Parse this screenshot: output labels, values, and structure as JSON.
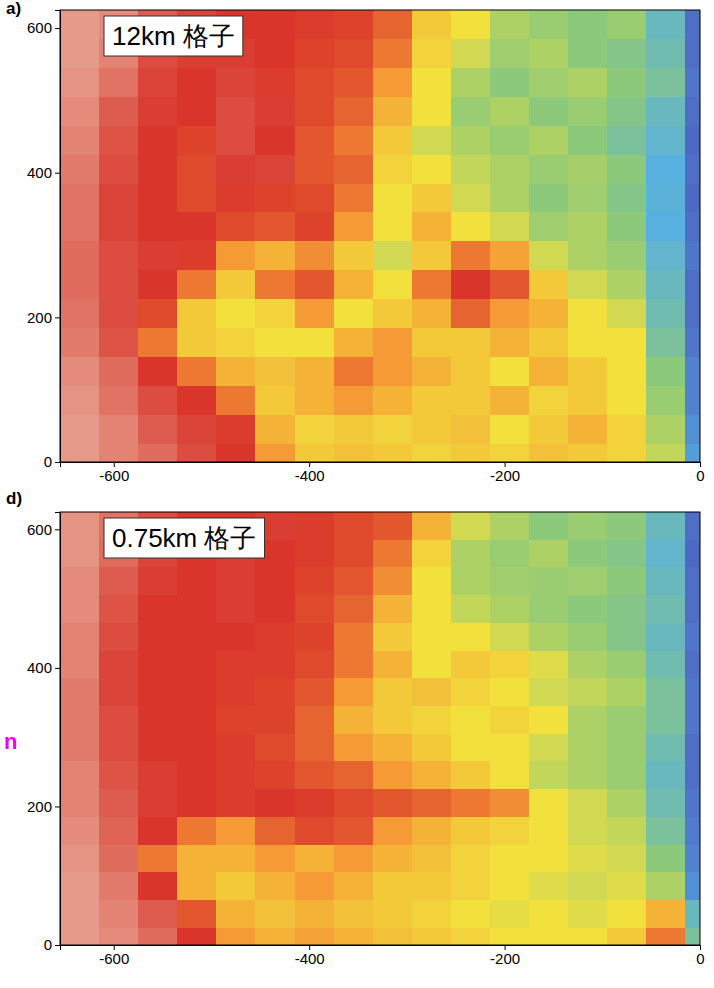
{
  "chart_data": [
    {
      "type": "heatmap",
      "title": "a)",
      "annotations": [
        {
          "text": "12km 格子"
        }
      ],
      "xlim": [
        -655,
        0
      ],
      "ylim": [
        0,
        625
      ],
      "xticks": [
        -600,
        -400,
        -200,
        0
      ],
      "yticks": [
        0,
        200,
        400,
        600
      ],
      "x_bins": [
        -655,
        -615,
        -575,
        -535,
        -495,
        -455,
        -415,
        -375,
        -335,
        -295,
        -255,
        -215,
        -175,
        -135,
        -95,
        -55,
        -15,
        0
      ],
      "y_bins": [
        625,
        585,
        545,
        505,
        465,
        425,
        385,
        345,
        305,
        265,
        225,
        185,
        145,
        105,
        65,
        25,
        0
      ],
      "color_values": [
        1,
        2.5,
        4,
        5.5,
        7,
        8.5,
        10
      ],
      "colors": [
        "#4a4fb8",
        "#58b0e0",
        "#8cc97a",
        "#f2e13c",
        "#f59a35",
        "#d9352a",
        "#e8aa98"
      ],
      "cells": [
        [
          9.8,
          9.6,
          9,
          8.7,
          8.5,
          8.5,
          8.4,
          8.3,
          7.8,
          6,
          5.5,
          4.5,
          4.2,
          4,
          4.2,
          3,
          1.5
        ],
        [
          9.8,
          9.5,
          8.8,
          8.6,
          8.6,
          8.5,
          8.3,
          8.2,
          7.5,
          5.8,
          5,
          4.3,
          4.5,
          4,
          3.8,
          3.2,
          1.5
        ],
        [
          9.7,
          9.3,
          8.7,
          8.5,
          8.7,
          8.4,
          8.2,
          8,
          7,
          5.5,
          4.5,
          4,
          4.3,
          4.5,
          4,
          3.5,
          1.6
        ],
        [
          9.6,
          9,
          8.6,
          8.5,
          8.8,
          8.6,
          8.2,
          7.8,
          6.5,
          5.5,
          4.2,
          4.5,
          4,
          4.2,
          3.8,
          3,
          1.5
        ],
        [
          9.5,
          8.9,
          8.5,
          8.3,
          8.8,
          8.5,
          8,
          7.5,
          6,
          5,
          4.5,
          4.2,
          4.5,
          4,
          3.5,
          2.8,
          1.4
        ],
        [
          9.4,
          8.8,
          8.5,
          8.2,
          8.6,
          8.7,
          8,
          7.8,
          5.8,
          5.5,
          4.8,
          4.5,
          4.2,
          4.4,
          4,
          2.5,
          1.5
        ],
        [
          9.3,
          8.7,
          8.5,
          8.2,
          8.4,
          8.3,
          8.2,
          7.5,
          5.5,
          6,
          5,
          4.5,
          4,
          4.3,
          3.8,
          2.6,
          1.4
        ],
        [
          9.3,
          8.7,
          8.5,
          8.5,
          8.2,
          8,
          8.3,
          7,
          5.5,
          6.5,
          5.5,
          5,
          4.3,
          4.5,
          4,
          2.5,
          1.5
        ],
        [
          9.2,
          8.8,
          8.6,
          8.4,
          7,
          6.5,
          7.2,
          6,
          5,
          6,
          7.5,
          6.8,
          5,
          4.5,
          4.2,
          2.8,
          1.6
        ],
        [
          9.2,
          8.8,
          8.5,
          7.5,
          6,
          7.5,
          8,
          6.5,
          5.5,
          7.5,
          8.5,
          8,
          6,
          5,
          4.5,
          3,
          1.5
        ],
        [
          9.3,
          8.8,
          8.2,
          6,
          5.5,
          5.8,
          7,
          5.5,
          6,
          6.5,
          7.8,
          7,
          6.5,
          5.5,
          5,
          3.2,
          1.5
        ],
        [
          9.4,
          8.9,
          7.5,
          6,
          5.8,
          5.5,
          5.5,
          6.5,
          7,
          6,
          6,
          6.5,
          6,
          5.5,
          5.5,
          3.5,
          1.6
        ],
        [
          9.6,
          9.2,
          8.5,
          7.5,
          6.5,
          6.2,
          6.5,
          7.5,
          7,
          6.5,
          6,
          5.5,
          6.5,
          6,
          5.5,
          4,
          1.8
        ],
        [
          9.7,
          9.3,
          8.8,
          8.5,
          7.5,
          6,
          6.5,
          7,
          6.5,
          6,
          6,
          6.5,
          5.8,
          6,
          5.5,
          4.2,
          1.8
        ],
        [
          9.8,
          9.5,
          9,
          8.7,
          8.4,
          6.5,
          5.8,
          6,
          5.8,
          6,
          6.2,
          5.5,
          6,
          6.5,
          5.8,
          4.5,
          2
        ],
        [
          9.8,
          9.5,
          9.2,
          8.8,
          8.5,
          7,
          6,
          6.2,
          6,
          5.8,
          6,
          5.8,
          6.2,
          6,
          5.8,
          4.8,
          2.2
        ]
      ]
    },
    {
      "type": "heatmap",
      "title": "d)",
      "annotations": [
        {
          "text": "0.75km 格子"
        },
        {
          "text": "n",
          "color": "#ee00ee"
        }
      ],
      "xlim": [
        -655,
        0
      ],
      "ylim": [
        0,
        625
      ],
      "xticks": [
        -600,
        -400,
        -200,
        0
      ],
      "yticks": [
        0,
        200,
        400,
        600
      ],
      "x_bins": [
        -655,
        -615,
        -575,
        -535,
        -495,
        -455,
        -415,
        -375,
        -335,
        -295,
        -255,
        -215,
        -175,
        -135,
        -95,
        -55,
        -15,
        0
      ],
      "y_bins": [
        625,
        585,
        545,
        505,
        465,
        425,
        385,
        345,
        305,
        265,
        225,
        185,
        145,
        105,
        65,
        25,
        0
      ],
      "color_values": [
        1,
        2.5,
        4,
        5.5,
        7,
        8.5,
        10
      ],
      "colors": [
        "#4a4fb8",
        "#58b0e0",
        "#8cc97a",
        "#f2e13c",
        "#f59a35",
        "#d9352a",
        "#e8aa98"
      ],
      "cells": [
        [
          9.7,
          9.3,
          8.8,
          8.5,
          8.5,
          8.6,
          8.4,
          8.2,
          8,
          6.5,
          5,
          4.5,
          4,
          4.2,
          4,
          3,
          1.5
        ],
        [
          9.7,
          9.2,
          8.7,
          8.5,
          8.6,
          8.5,
          8.4,
          8.2,
          7.5,
          5.8,
          4.5,
          4.2,
          4.5,
          4,
          3.8,
          2.8,
          1.4
        ],
        [
          9.6,
          9,
          8.6,
          8.5,
          8.6,
          8.5,
          8.3,
          8,
          7.2,
          5.5,
          4.5,
          4.3,
          4.2,
          4.3,
          4,
          3,
          1.5
        ],
        [
          9.6,
          8.9,
          8.5,
          8.5,
          8.6,
          8.5,
          8.2,
          7.8,
          6.5,
          5.5,
          4.8,
          4.5,
          4.2,
          4,
          3.8,
          3.2,
          1.5
        ],
        [
          9.5,
          8.8,
          8.5,
          8.5,
          8.5,
          8.4,
          8.3,
          7.5,
          6,
          5.5,
          5.5,
          5,
          4.5,
          4.2,
          3.8,
          3,
          1.6
        ],
        [
          9.5,
          8.7,
          8.5,
          8.5,
          8.4,
          8.4,
          8.2,
          7.5,
          6.5,
          5.5,
          6,
          5.8,
          5.2,
          4.5,
          4.2,
          3.2,
          1.5
        ],
        [
          9.4,
          8.7,
          8.5,
          8.5,
          8.4,
          8.3,
          8,
          7,
          6,
          6.2,
          5.8,
          5.5,
          5,
          4.8,
          4.5,
          3.5,
          1.6
        ],
        [
          9.4,
          8.8,
          8.5,
          8.5,
          8.3,
          8.3,
          7.8,
          6.5,
          6,
          5.8,
          5.5,
          5.8,
          5.5,
          4.5,
          4.2,
          3.5,
          1.6
        ],
        [
          9.4,
          8.8,
          8.5,
          8.5,
          8.4,
          8.2,
          7.8,
          7,
          6.5,
          6,
          5.5,
          5.5,
          5,
          4.5,
          4.2,
          3.2,
          1.5
        ],
        [
          9.5,
          8.9,
          8.6,
          8.5,
          8.4,
          8.3,
          8,
          7.8,
          7,
          6.5,
          6,
          5.5,
          4.8,
          4.5,
          4.2,
          3,
          1.5
        ],
        [
          9.5,
          9,
          8.6,
          8.5,
          8.4,
          8.5,
          8.4,
          8.2,
          8,
          7.8,
          7.5,
          7.2,
          5.5,
          5,
          4.5,
          3.2,
          1.6
        ],
        [
          9.6,
          9.1,
          8.5,
          7.5,
          7,
          7.8,
          8.2,
          8,
          7,
          6.5,
          6,
          5.8,
          5.5,
          5,
          4.8,
          3.5,
          1.7
        ],
        [
          9.7,
          9.2,
          7.5,
          6.5,
          6.5,
          7,
          6.5,
          7,
          6.5,
          6.2,
          5.8,
          5.5,
          5.5,
          5.2,
          5,
          4,
          1.8
        ],
        [
          9.8,
          9.4,
          8.5,
          6.5,
          6,
          6.5,
          7,
          6.5,
          6,
          6,
          5.8,
          5.5,
          5.2,
          5,
          5.2,
          4.5,
          2
        ],
        [
          9.8,
          9.5,
          9,
          8,
          6.5,
          6.2,
          6.5,
          6.2,
          6,
          5.8,
          5.5,
          5.3,
          5.5,
          5.2,
          5.5,
          6.5,
          3
        ],
        [
          9.8,
          9.6,
          9.2,
          8.5,
          7,
          6.5,
          6.8,
          6.5,
          6.2,
          6,
          5.8,
          5.5,
          5.5,
          5.5,
          6,
          7.5,
          3.5
        ]
      ]
    }
  ]
}
